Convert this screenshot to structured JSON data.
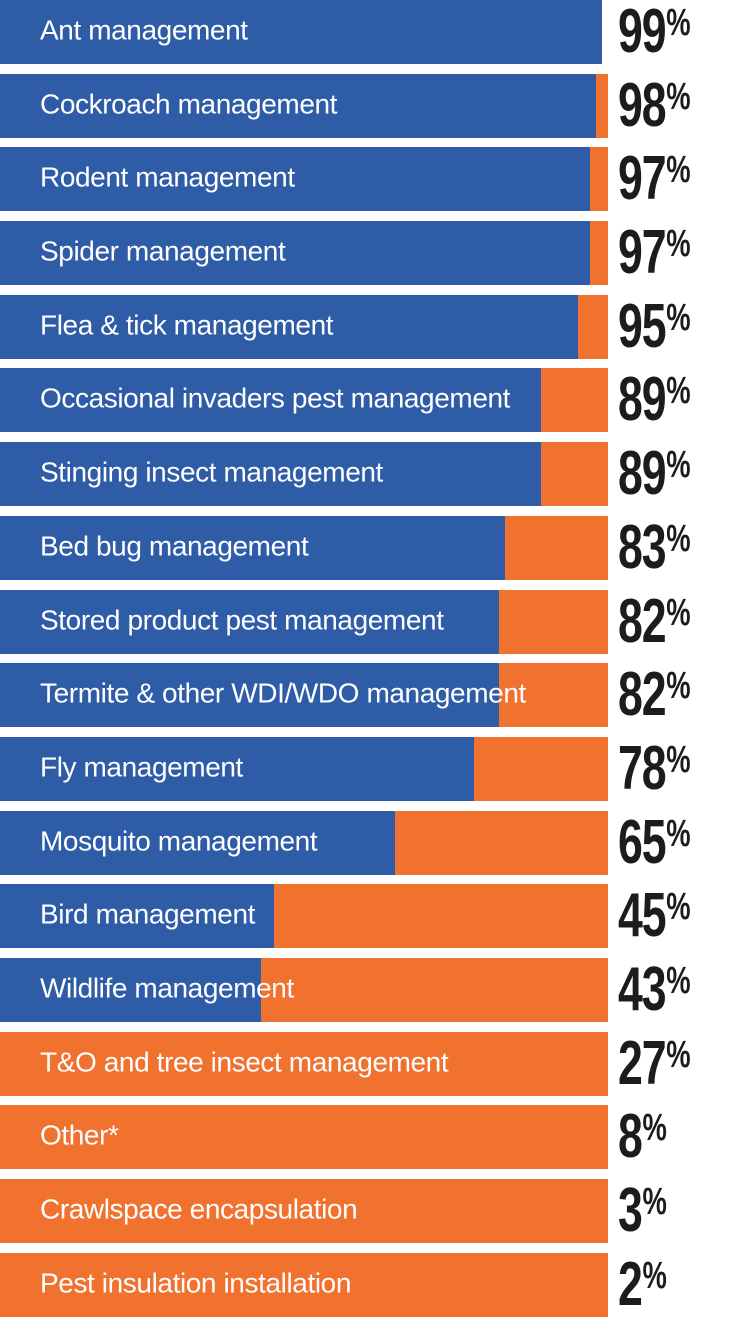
{
  "percent_sign": "%",
  "colors": {
    "bar_blue": "#2e5ca7",
    "bar_orange": "#f1712f",
    "value_text": "#1c1c1c",
    "label_text": "#ffffff",
    "background": "#ffffff"
  },
  "chart_data": {
    "type": "bar",
    "orientation": "horizontal",
    "value_unit": "%",
    "value_range": [
      0,
      100
    ],
    "grid": false,
    "legend": "none",
    "layout_note": "Stacked two-color horizontal bars: blue segment length = percentage value, orange fills the remainder of the track; rows of 27% and below are drawn fully orange; value labels in heavy condensed black type to the right of each bar.",
    "categories": [
      "Ant management",
      "Cockroach management",
      "Rodent management",
      "Spider management",
      "Flea & tick management",
      "Occasional invaders pest management",
      "Stinging insect management",
      "Bed bug management",
      "Stored product pest management",
      "Termite & other WDI/WDO management",
      "Fly management",
      "Mosquito management",
      "Bird management",
      "Wildlife management",
      "T&O and tree insect management",
      "Other*",
      "Crawlspace encapsulation",
      "Pest insulation installation"
    ],
    "values": [
      99,
      98,
      97,
      97,
      95,
      89,
      89,
      83,
      82,
      82,
      78,
      65,
      45,
      43,
      27,
      8,
      3,
      2
    ],
    "rows": [
      {
        "label": "Ant management",
        "value": 99,
        "segments": {
          "blue_pct": 99,
          "orange_pct": 0
        }
      },
      {
        "label": "Cockroach management",
        "value": 98,
        "segments": {
          "blue_pct": 98,
          "orange_pct": 2
        }
      },
      {
        "label": "Rodent management",
        "value": 97,
        "segments": {
          "blue_pct": 97,
          "orange_pct": 3
        }
      },
      {
        "label": "Spider management",
        "value": 97,
        "segments": {
          "blue_pct": 97,
          "orange_pct": 3
        }
      },
      {
        "label": "Flea & tick management",
        "value": 95,
        "segments": {
          "blue_pct": 95,
          "orange_pct": 5
        }
      },
      {
        "label": "Occasional invaders pest management",
        "value": 89,
        "segments": {
          "blue_pct": 89,
          "orange_pct": 11
        }
      },
      {
        "label": "Stinging insect management",
        "value": 89,
        "segments": {
          "blue_pct": 89,
          "orange_pct": 11
        }
      },
      {
        "label": "Bed bug management",
        "value": 83,
        "segments": {
          "blue_pct": 83,
          "orange_pct": 17
        }
      },
      {
        "label": "Stored product pest management",
        "value": 82,
        "segments": {
          "blue_pct": 82,
          "orange_pct": 18
        }
      },
      {
        "label": "Termite & other WDI/WDO management",
        "value": 82,
        "segments": {
          "blue_pct": 82,
          "orange_pct": 18
        }
      },
      {
        "label": "Fly management",
        "value": 78,
        "segments": {
          "blue_pct": 78,
          "orange_pct": 22
        }
      },
      {
        "label": "Mosquito management",
        "value": 65,
        "segments": {
          "blue_pct": 65,
          "orange_pct": 35
        }
      },
      {
        "label": "Bird management",
        "value": 45,
        "segments": {
          "blue_pct": 45,
          "orange_pct": 55
        }
      },
      {
        "label": "Wildlife management",
        "value": 43,
        "segments": {
          "blue_pct": 43,
          "orange_pct": 57
        }
      },
      {
        "label": "T&O and tree insect management",
        "value": 27,
        "segments": {
          "blue_pct": 0,
          "orange_pct": 100
        }
      },
      {
        "label": "Other*",
        "value": 8,
        "segments": {
          "blue_pct": 0,
          "orange_pct": 100
        }
      },
      {
        "label": "Crawlspace encapsulation",
        "value": 3,
        "segments": {
          "blue_pct": 0,
          "orange_pct": 100
        }
      },
      {
        "label": "Pest insulation installation",
        "value": 2,
        "segments": {
          "blue_pct": 0,
          "orange_pct": 100
        }
      }
    ]
  }
}
